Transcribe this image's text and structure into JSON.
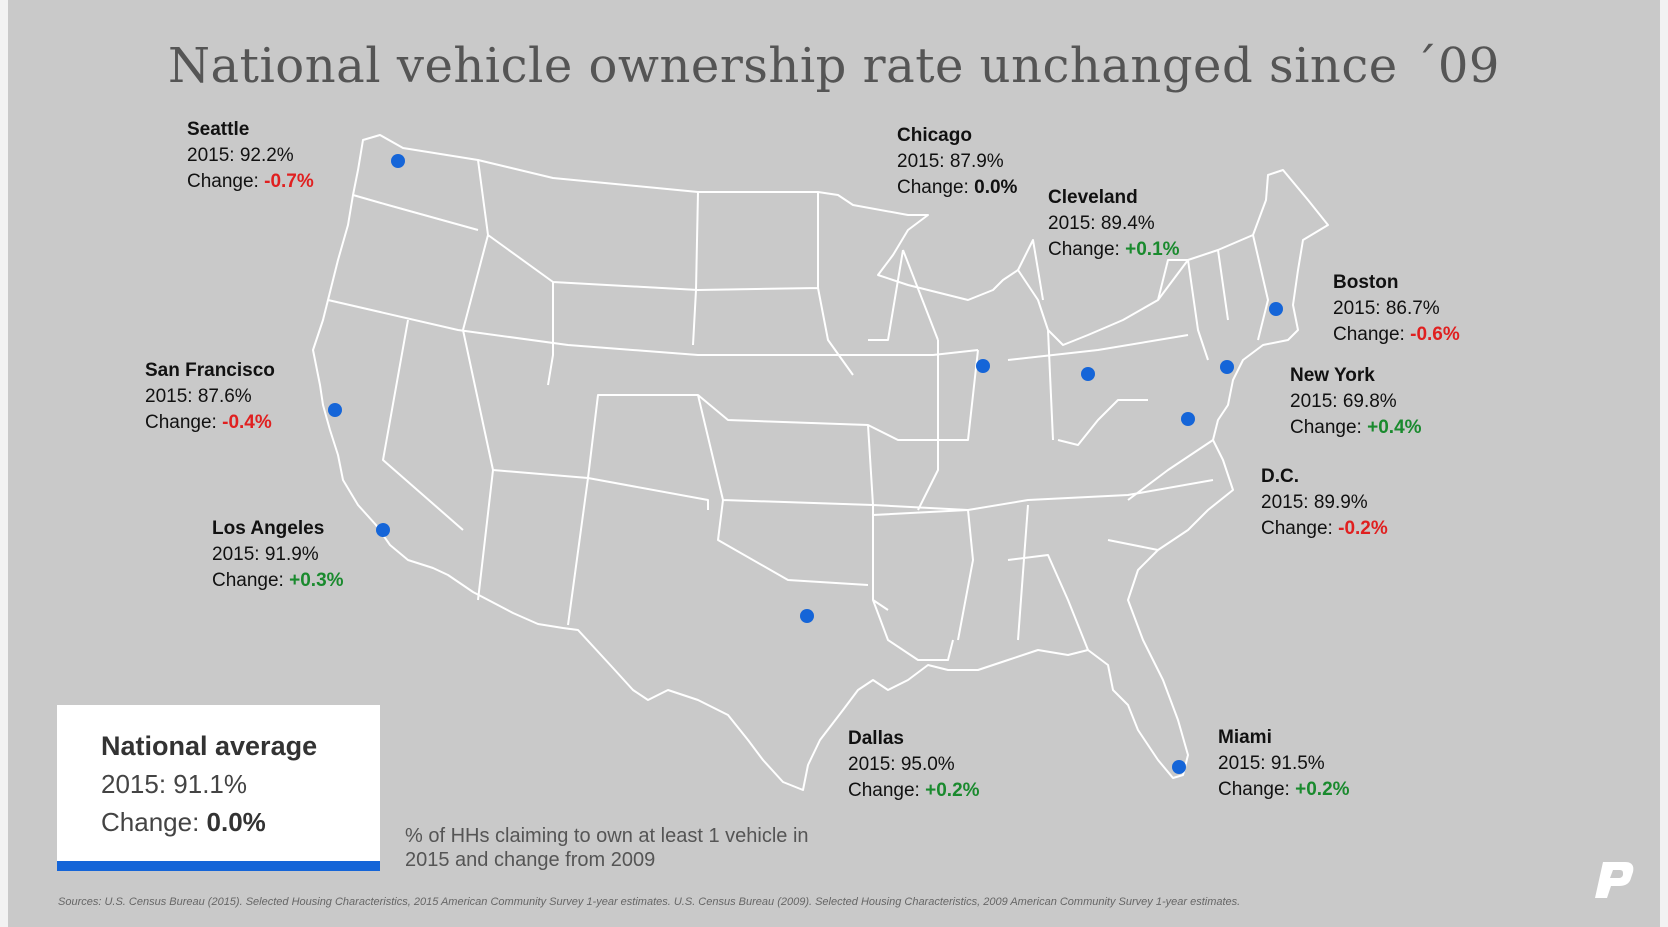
{
  "title": "National vehicle ownership rate unchanged since ´09",
  "cities": [
    {
      "name": "Seattle",
      "year_label": "2015: 92.2%",
      "change_prefix": "Change: ",
      "change": "-0.7%",
      "dir": "neg"
    },
    {
      "name": "Chicago",
      "year_label": "2015: 87.9%",
      "change_prefix": "Change: ",
      "change": "0.0%",
      "dir": "zero"
    },
    {
      "name": "Cleveland",
      "year_label": "2015: 89.4%",
      "change_prefix": "Change: ",
      "change": "+0.1%",
      "dir": "pos"
    },
    {
      "name": "Boston",
      "year_label": "2015: 86.7%",
      "change_prefix": "Change: ",
      "change": "-0.6%",
      "dir": "neg"
    },
    {
      "name": "San Francisco",
      "year_label": "2015: 87.6%",
      "change_prefix": "Change: ",
      "change": "-0.4%",
      "dir": "neg"
    },
    {
      "name": "New York",
      "year_label": "2015: 69.8%",
      "change_prefix": "Change: ",
      "change": "+0.4%",
      "dir": "pos"
    },
    {
      "name": "D.C.",
      "year_label": "2015: 89.9%",
      "change_prefix": "Change: ",
      "change": "-0.2%",
      "dir": "neg"
    },
    {
      "name": "Los Angeles",
      "year_label": "2015: 91.9%",
      "change_prefix": "Change: ",
      "change": "+0.3%",
      "dir": "pos"
    },
    {
      "name": "Dallas",
      "year_label": "2015: 95.0%",
      "change_prefix": "Change: ",
      "change": "+0.2%",
      "dir": "pos"
    },
    {
      "name": "Miami",
      "year_label": "2015: 91.5%",
      "change_prefix": "Change: ",
      "change": "+0.2%",
      "dir": "pos"
    }
  ],
  "national": {
    "title": "National average",
    "year_label": "2015: 91.1%",
    "change_prefix": "Change: ",
    "change": "0.0%"
  },
  "note": "% of HHs claiming to own at least 1 vehicle in 2015 and change from 2009",
  "sources": "Sources: U.S. Census Bureau (2015). Selected Housing Characteristics, 2015 American Community Survey 1-year estimates. U.S. Census Bureau (2009). Selected Housing Characteristics, 2009 American Community Survey 1-year estimates.",
  "colors": {
    "background": "#c9c9c9",
    "marker": "#1565d8",
    "negative": "#e02020",
    "positive": "#1a8a2e",
    "state_lines": "#ffffff"
  },
  "icons": {
    "logo": "p-logo-icon",
    "marker": "city-marker-icon"
  }
}
